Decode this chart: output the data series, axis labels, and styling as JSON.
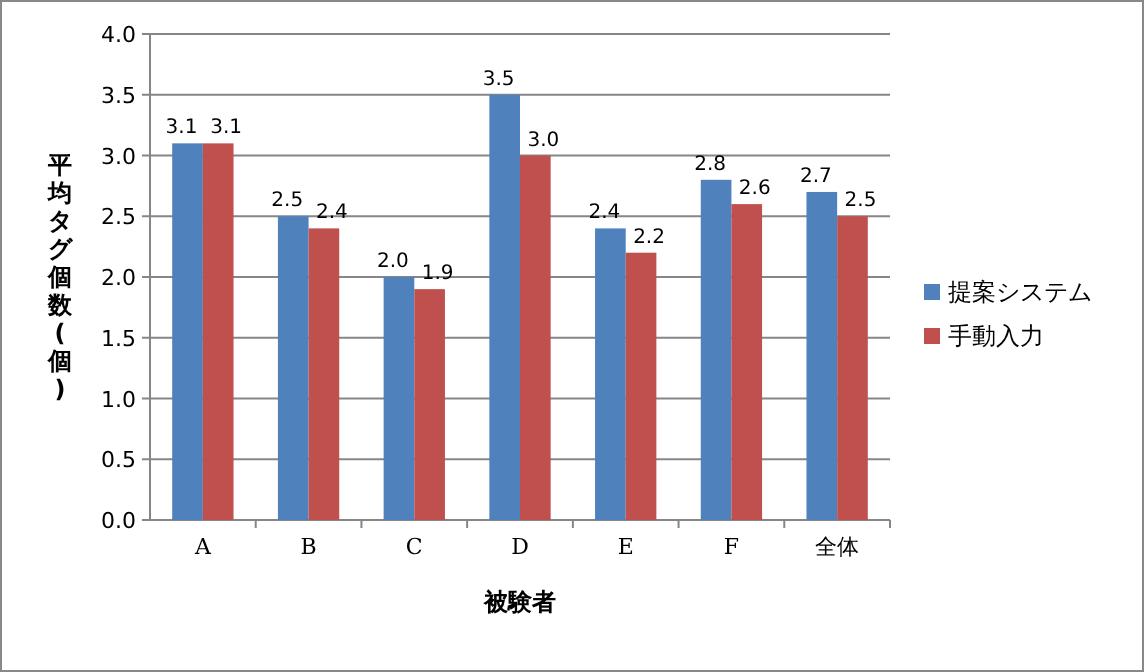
{
  "chart_data": {
    "type": "bar",
    "xlabel": "被験者",
    "ylabel": "平均タグ個数(個)",
    "categories": [
      "A",
      "B",
      "C",
      "D",
      "E",
      "F",
      "全体"
    ],
    "series": [
      {
        "name": "提案システム",
        "color": "#4f81bd",
        "values": [
          3.1,
          2.5,
          2.0,
          3.5,
          2.4,
          2.8,
          2.7
        ],
        "value_labels": [
          "3.1",
          "2.5",
          "2.0",
          "3.5",
          "2.4",
          "2.8",
          "2.7"
        ]
      },
      {
        "name": "手動入力",
        "color": "#c0504d",
        "values": [
          3.1,
          2.4,
          1.9,
          3.0,
          2.2,
          2.6,
          2.5
        ],
        "value_labels": [
          "3.1",
          "2.4",
          "1.9",
          "3.0",
          "2.2",
          "2.6",
          "2.5"
        ]
      }
    ],
    "ylim": [
      0,
      4
    ],
    "yticks": [
      {
        "value": 0,
        "label": "0.0"
      },
      {
        "value": 0.5,
        "label": "0.5"
      },
      {
        "value": 1,
        "label": "1.0"
      },
      {
        "value": 1.5,
        "label": "1.5"
      },
      {
        "value": 2,
        "label": "2.0"
      },
      {
        "value": 2.5,
        "label": "2.5"
      },
      {
        "value": 3,
        "label": "3.0"
      },
      {
        "value": 3.5,
        "label": "3.5"
      },
      {
        "value": 4,
        "label": "4.0"
      }
    ],
    "grid": "y",
    "legend": "right"
  }
}
